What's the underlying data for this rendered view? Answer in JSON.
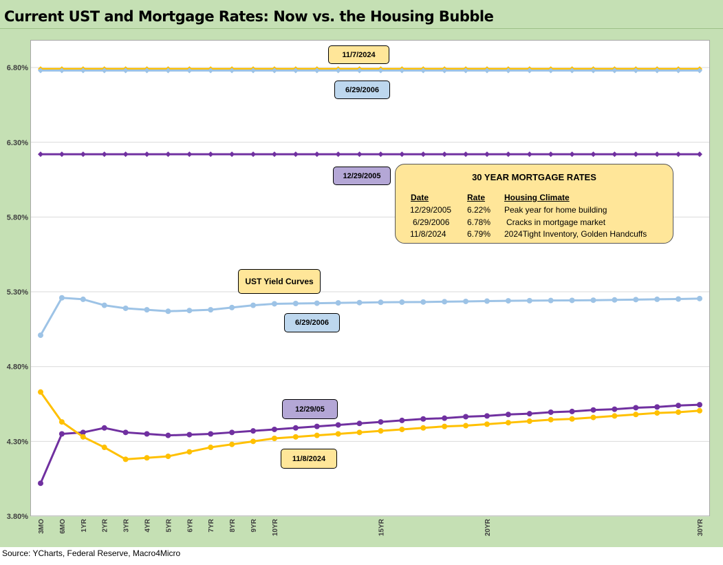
{
  "title": "Current UST and Mortgage Rates: Now vs. the Housing Bubble",
  "source": "Source: YCharts, Federal Reserve, Macro4Micro",
  "colors": {
    "blue": "#9dc3e6",
    "purple": "#7030a0",
    "yellow": "#ffc000",
    "grid": "#d9d9d9"
  },
  "labels": {
    "top_2024": "11/7/2024",
    "top_2006": "6/29/2006",
    "mid_2005": "12/29/2005",
    "ust_curves": "UST  Yield Curves",
    "curve_2006": "6/29/2006",
    "curve_2005": "12/29/05",
    "curve_2024": "11/8/2024"
  },
  "mortgage_table": {
    "title": "30 YEAR MORTGAGE RATES",
    "headers": [
      "Date",
      "Rate",
      "Housing  Climate"
    ],
    "rows": [
      [
        "12/29/2005",
        "6.22%",
        "Peak year for home building"
      ],
      [
        "6/29/2006",
        "6.78%",
        "Cracks in mortgage market"
      ],
      [
        "11/8/2024",
        "6.79%",
        "2024Tight Inventory, Golden Handcuffs"
      ]
    ]
  },
  "chart_data": {
    "type": "line",
    "ylim": [
      3.8,
      6.98
    ],
    "yticks": [
      "3.80%",
      "4.30%",
      "4.80%",
      "5.30%",
      "5.80%",
      "6.30%",
      "6.80%"
    ],
    "ytick_values": [
      3.8,
      4.3,
      4.8,
      5.3,
      5.8,
      6.3,
      6.8
    ],
    "categories": [
      "3MO",
      "6MO",
      "1YR",
      "2YR",
      "3YR",
      "4YR",
      "5YR",
      "6YR",
      "7YR",
      "8YR",
      "9YR",
      "10YR",
      "",
      "",
      "",
      "",
      "15YR",
      "",
      "",
      "",
      "",
      "20YR",
      "",
      "",
      "",
      "",
      "",
      "",
      "",
      "",
      "",
      "30YR"
    ],
    "series": [
      {
        "name": "Mortgage 11/7/2024",
        "color": "#ffc000",
        "marker": "diamond",
        "values": [
          6.79,
          6.79,
          6.79,
          6.79,
          6.79,
          6.79,
          6.79,
          6.79,
          6.79,
          6.79,
          6.79,
          6.79,
          6.79,
          6.79,
          6.79,
          6.79,
          6.79,
          6.79,
          6.79,
          6.79,
          6.79,
          6.79,
          6.79,
          6.79,
          6.79,
          6.79,
          6.79,
          6.79,
          6.79,
          6.79,
          6.79,
          6.79
        ]
      },
      {
        "name": "Mortgage 6/29/2006",
        "color": "#9dc3e6",
        "marker": "diamond",
        "values": [
          6.78,
          6.78,
          6.78,
          6.78,
          6.78,
          6.78,
          6.78,
          6.78,
          6.78,
          6.78,
          6.78,
          6.78,
          6.78,
          6.78,
          6.78,
          6.78,
          6.78,
          6.78,
          6.78,
          6.78,
          6.78,
          6.78,
          6.78,
          6.78,
          6.78,
          6.78,
          6.78,
          6.78,
          6.78,
          6.78,
          6.78,
          6.78
        ]
      },
      {
        "name": "Mortgage 12/29/2005",
        "color": "#7030a0",
        "marker": "diamond",
        "values": [
          6.22,
          6.22,
          6.22,
          6.22,
          6.22,
          6.22,
          6.22,
          6.22,
          6.22,
          6.22,
          6.22,
          6.22,
          6.22,
          6.22,
          6.22,
          6.22,
          6.22,
          6.22,
          6.22,
          6.22,
          6.22,
          6.22,
          6.22,
          6.22,
          6.22,
          6.22,
          6.22,
          6.22,
          6.22,
          6.22,
          6.22,
          6.22
        ]
      },
      {
        "name": "UST 6/29/2006",
        "color": "#9dc3e6",
        "marker": "circle",
        "values": [
          5.01,
          5.26,
          5.25,
          5.21,
          5.19,
          5.18,
          5.17,
          5.175,
          5.18,
          5.195,
          5.21,
          5.22,
          5.222,
          5.224,
          5.226,
          5.228,
          5.23,
          5.231,
          5.232,
          5.234,
          5.236,
          5.238,
          5.24,
          5.241,
          5.242,
          5.243,
          5.244,
          5.246,
          5.248,
          5.25,
          5.252,
          5.255
        ]
      },
      {
        "name": "UST 12/29/2005",
        "color": "#7030a0",
        "marker": "circle",
        "values": [
          4.02,
          4.35,
          4.36,
          4.39,
          4.36,
          4.35,
          4.34,
          4.345,
          4.35,
          4.36,
          4.37,
          4.38,
          4.39,
          4.4,
          4.41,
          4.42,
          4.43,
          4.44,
          4.45,
          4.455,
          4.465,
          4.47,
          4.48,
          4.485,
          4.495,
          4.5,
          4.51,
          4.515,
          4.525,
          4.53,
          4.54,
          4.545
        ]
      },
      {
        "name": "UST 11/8/2024",
        "color": "#ffc000",
        "marker": "circle",
        "values": [
          4.63,
          4.43,
          4.33,
          4.26,
          4.18,
          4.19,
          4.2,
          4.23,
          4.26,
          4.28,
          4.3,
          4.32,
          4.33,
          4.34,
          4.35,
          4.36,
          4.37,
          4.38,
          4.39,
          4.4,
          4.405,
          4.415,
          4.425,
          4.435,
          4.445,
          4.45,
          4.46,
          4.47,
          4.48,
          4.49,
          4.495,
          4.505
        ]
      }
    ]
  }
}
